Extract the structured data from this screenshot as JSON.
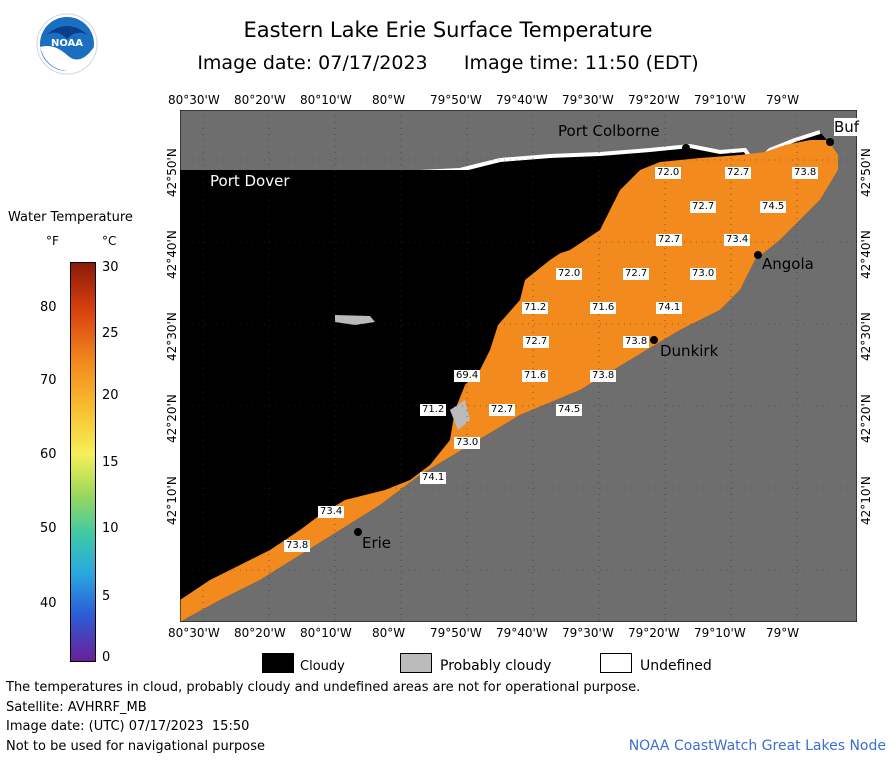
{
  "header": {
    "title": "Eastern Lake Erie Surface Temperature",
    "image_date": "Image date: 07/17/2023",
    "image_time": "Image time: 11:50 (EDT)",
    "logo_text": "NOAA"
  },
  "map": {
    "lon_labels": [
      "80°30'W",
      "80°20'W",
      "80°10'W",
      "80°W",
      "79°50'W",
      "79°40'W",
      "79°30'W",
      "79°20'W",
      "79°10'W",
      "79°W"
    ],
    "lat_labels": [
      "42°50'N",
      "42°40'N",
      "42°30'N",
      "42°20'N",
      "42°10'N"
    ],
    "places": {
      "port_colborne": "Port Colborne",
      "buffalo": "Buf",
      "port_dover": "Port Dover",
      "angola": "Angola",
      "dunkirk": "Dunkirk",
      "erie": "Erie"
    },
    "temps": [
      "72.0",
      "72.7",
      "73.8",
      "72.7",
      "74.5",
      "72.7",
      "73.4",
      "72.0",
      "72.7",
      "73.0",
      "71.2",
      "71.6",
      "74.1",
      "72.7",
      "73.8",
      "69.4",
      "71.6",
      "73.8",
      "71.2",
      "72.7",
      "74.5",
      "73.0",
      "74.1",
      "73.4",
      "73.8"
    ],
    "colors": {
      "cloud": "#000000",
      "land": "#6e6e6e",
      "water": "#f28a1e",
      "probably_cloudy": "#bbbbbb"
    }
  },
  "scale": {
    "title": "Water Temperature",
    "unit_f": "°F",
    "unit_c": "°C",
    "f_labels": [
      "80",
      "70",
      "60",
      "50",
      "40"
    ],
    "c_labels": [
      "30",
      "25",
      "20",
      "15",
      "10",
      "5",
      "0"
    ]
  },
  "legend": {
    "cloudy": "Cloudy",
    "probably_cloudy": "Probably cloudy",
    "undefined": "Undefined"
  },
  "footer": {
    "disclaimer": "The temperatures in cloud, probably cloudy and undefined areas are not for operational purpose.",
    "satellite": "Satellite: AVHRRF_MB",
    "utc_date": "Image date: (UTC) 07/17/2023  15:50",
    "nav": "Not to be used for navigational purpose",
    "credit": "NOAA CoastWatch Great Lakes Node"
  }
}
